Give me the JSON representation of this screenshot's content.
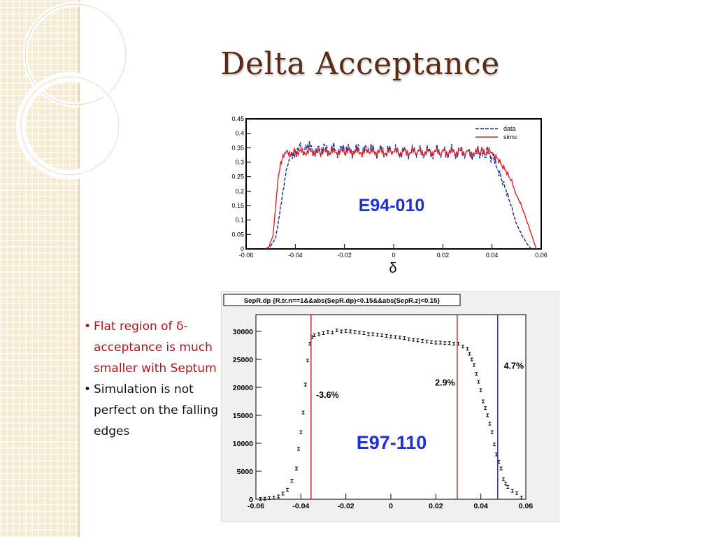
{
  "slide": {
    "title": "Delta Acceptance",
    "bullets": [
      {
        "text": "Flat region of δ-acceptance is much smaller with Septum",
        "color": "#b0141a"
      },
      {
        "text": "Simulation is not perfect on the falling edges",
        "color": "#111111"
      }
    ]
  },
  "chart_data": [
    {
      "type": "line",
      "xlabel": "δ",
      "annotation": "E94-010",
      "xlim": [
        -0.06,
        0.06
      ],
      "ylim": [
        0,
        0.45
      ],
      "xticks": [
        "-0.06",
        "-0.04",
        "-0.02",
        "0",
        "0.02",
        "0.04",
        "0.06"
      ],
      "yticks": [
        "0",
        "0.05",
        "0.1",
        "0.15",
        "0.2",
        "0.25",
        "0.3",
        "0.35",
        "0.4",
        "0.45"
      ],
      "legend": "top-right",
      "series": [
        {
          "name": "data",
          "color": "#1c2a8c",
          "x": [
            -0.052,
            -0.05,
            -0.048,
            -0.047,
            -0.046,
            -0.045,
            -0.044,
            -0.043,
            -0.042,
            -0.04,
            -0.035,
            -0.03,
            -0.02,
            -0.01,
            0,
            0.01,
            0.02,
            0.03,
            0.035,
            0.038,
            0.04,
            0.041,
            0.042,
            0.044,
            0.046,
            0.048,
            0.05,
            0.052,
            0.054,
            0.056
          ],
          "y": [
            0,
            0.01,
            0.04,
            0.09,
            0.15,
            0.2,
            0.25,
            0.29,
            0.32,
            0.345,
            0.345,
            0.345,
            0.34,
            0.34,
            0.335,
            0.335,
            0.335,
            0.335,
            0.33,
            0.33,
            0.32,
            0.31,
            0.29,
            0.24,
            0.19,
            0.14,
            0.09,
            0.05,
            0.02,
            0
          ]
        },
        {
          "name": "simu",
          "color": "#e0202a",
          "x": [
            -0.051,
            -0.049,
            -0.048,
            -0.047,
            -0.046,
            -0.045,
            -0.044,
            -0.04,
            -0.03,
            -0.02,
            -0.01,
            0,
            0.01,
            0.02,
            0.03,
            0.035,
            0.04,
            0.042,
            0.044,
            0.046,
            0.048,
            0.05,
            0.052,
            0.054,
            0.056,
            0.058
          ],
          "y": [
            0,
            0.05,
            0.15,
            0.25,
            0.3,
            0.32,
            0.33,
            0.335,
            0.335,
            0.335,
            0.335,
            0.335,
            0.335,
            0.335,
            0.335,
            0.335,
            0.335,
            0.32,
            0.29,
            0.26,
            0.23,
            0.19,
            0.15,
            0.1,
            0.05,
            0.0
          ]
        }
      ]
    },
    {
      "type": "scatter",
      "title": "SepR.dp {R.tr.n==1&&abs(SepR.dp)<0.15&&abs(SepR.z)<0.15}",
      "annotation": "E97-110",
      "xlim": [
        -0.06,
        0.06
      ],
      "ylim": [
        0,
        33000
      ],
      "xticks": [
        "-0.06",
        "-0.04",
        "-0.02",
        "0",
        "0.02",
        "0.04",
        "0.06"
      ],
      "yticks": [
        "0",
        "5000",
        "10000",
        "15000",
        "20000",
        "25000",
        "30000"
      ],
      "vlines": [
        {
          "x": -0.0355,
          "color": "#d4232a",
          "label": "-3.6%"
        },
        {
          "x": 0.0295,
          "color": "#d4232a",
          "label": "2.9%"
        },
        {
          "x": 0.0475,
          "color": "#2236c8",
          "label": "4.7%"
        }
      ],
      "x": [
        -0.058,
        -0.056,
        -0.054,
        -0.052,
        -0.05,
        -0.048,
        -0.046,
        -0.044,
        -0.042,
        -0.041,
        -0.04,
        -0.039,
        -0.038,
        -0.037,
        -0.036,
        -0.035,
        -0.034,
        -0.032,
        -0.03,
        -0.028,
        -0.026,
        -0.024,
        -0.022,
        -0.02,
        -0.018,
        -0.016,
        -0.014,
        -0.012,
        -0.01,
        -0.008,
        -0.006,
        -0.004,
        -0.002,
        0,
        0.002,
        0.004,
        0.006,
        0.008,
        0.01,
        0.012,
        0.014,
        0.016,
        0.018,
        0.02,
        0.022,
        0.024,
        0.026,
        0.028,
        0.03,
        0.032,
        0.034,
        0.035,
        0.036,
        0.037,
        0.038,
        0.039,
        0.04,
        0.041,
        0.042,
        0.043,
        0.044,
        0.045,
        0.046,
        0.047,
        0.048,
        0.049,
        0.05,
        0.051,
        0.052,
        0.054,
        0.056,
        0.058
      ],
      "y": [
        50,
        100,
        200,
        300,
        500,
        1000,
        1700,
        3300,
        5500,
        9000,
        12000,
        15500,
        20500,
        24800,
        27800,
        29000,
        29300,
        29500,
        29700,
        29900,
        29800,
        30200,
        30000,
        30100,
        30000,
        29900,
        29800,
        29700,
        29500,
        29500,
        29400,
        29300,
        29200,
        29100,
        29000,
        28900,
        28800,
        28600,
        28500,
        28400,
        28300,
        28200,
        28100,
        28000,
        28000,
        27900,
        27900,
        27800,
        27800,
        27300,
        26900,
        26000,
        25000,
        24000,
        22400,
        21000,
        19500,
        17500,
        16300,
        15000,
        13500,
        12000,
        9800,
        8000,
        6700,
        5500,
        3600,
        2800,
        2200,
        1500,
        1100,
        300
      ]
    }
  ]
}
